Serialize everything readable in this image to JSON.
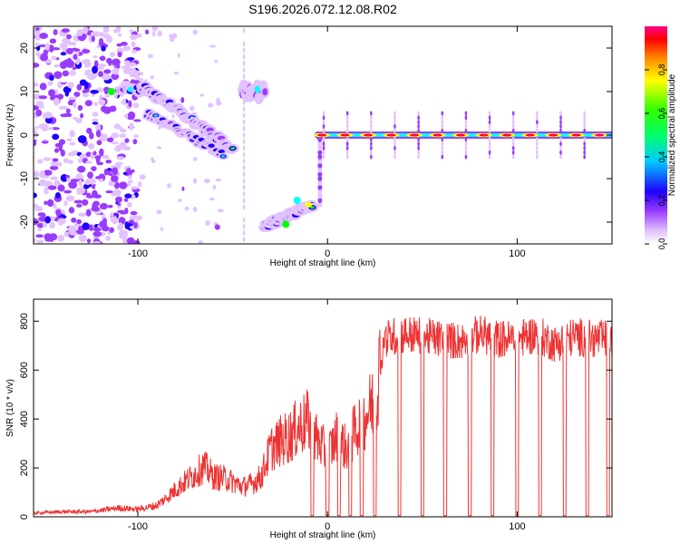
{
  "figure_title": "S196.2026.072.12.08.R02",
  "colors": {
    "snr_line": "#ee3333",
    "spectrogram_background": "#ffffff",
    "colormap": [
      "#ffffff",
      "#e2c2ff",
      "#9a3cff",
      "#1e00ff",
      "#00ffff",
      "#00ff00",
      "#ffff00",
      "#ff8000",
      "#ff0000",
      "#ff0080"
    ]
  },
  "chart_data": [
    {
      "type": "heatmap",
      "title": "",
      "xlabel": "Height of straight line (km)",
      "ylabel": "Frequency (Hz)",
      "xlim": [
        -155,
        150
      ],
      "ylim": [
        -25,
        25
      ],
      "x_ticks": [
        -100,
        0,
        100
      ],
      "x_tick_labels": [
        "-100",
        "0",
        "100"
      ],
      "y_ticks": [
        -20,
        -10,
        0,
        10,
        20
      ],
      "y_tick_labels": [
        "-20",
        "-10",
        "0",
        "10",
        "20"
      ],
      "grid": false,
      "colorbar": {
        "label": "Normalized spectral amplitude",
        "range": [
          0,
          1
        ],
        "ticks": [
          0.0,
          0.2,
          0.4,
          0.6,
          0.8
        ],
        "tick_labels": [
          "0.0",
          "0.2",
          "0.4",
          "0.6",
          "0.8"
        ]
      },
      "features": [
        {
          "name": "noise",
          "x_range": [
            -155,
            -100
          ],
          "freq_range": [
            -25,
            25
          ],
          "peak": 0.25
        },
        {
          "name": "band-10Hz",
          "x_range": [
            -110,
            -95
          ],
          "freq_center": 10.5,
          "peak": 0.55
        },
        {
          "name": "descending-track",
          "x_start": -97,
          "freq_start": 11,
          "x_end": -50,
          "freq_end": -3,
          "peak": 0.55
        },
        {
          "name": "lower-track",
          "x_start": -95,
          "freq_start": 5,
          "x_end": -55,
          "freq_end": -4.5,
          "peak": 0.5
        },
        {
          "name": "band-near-x-35",
          "x_range": [
            -45,
            -33
          ],
          "freq_center": 10,
          "peak": 0.45
        },
        {
          "name": "ascending-track",
          "x_start": -33,
          "freq_start": -21,
          "x_end": -8,
          "freq_end": -16,
          "peak": 0.65
        },
        {
          "name": "zero-line",
          "x_range": [
            -5,
            150
          ],
          "freq_center": 0,
          "peak": 1.0
        }
      ]
    },
    {
      "type": "line",
      "title": "",
      "xlabel": "Height of straight line (km)",
      "ylabel": "SNR (10 * v/v)",
      "xlim": [
        -155,
        150
      ],
      "ylim": [
        0,
        890
      ],
      "x_ticks": [
        -100,
        0,
        100
      ],
      "x_tick_labels": [
        "-100",
        "0",
        "100"
      ],
      "y_ticks": [
        0,
        200,
        400,
        600,
        800
      ],
      "y_tick_labels": [
        "0",
        "200",
        "400",
        "600",
        "800"
      ],
      "grid": false,
      "series": [
        {
          "x": [
            -155,
            -140,
            -125,
            -110,
            -100,
            -90,
            -85,
            -80,
            -75,
            -70,
            -65,
            -60,
            -55,
            -50,
            -45,
            -40,
            -35,
            -30,
            -25,
            -20,
            -15,
            -10,
            -5,
            0,
            5,
            10,
            15,
            20,
            25,
            30,
            40,
            50,
            60,
            70,
            80,
            90,
            100,
            110,
            120,
            130,
            140,
            150
          ],
          "y": [
            15,
            20,
            20,
            35,
            30,
            45,
            75,
            110,
            140,
            170,
            200,
            160,
            155,
            140,
            120,
            130,
            160,
            270,
            300,
            320,
            360,
            380,
            300,
            250,
            320,
            270,
            350,
            400,
            470,
            720,
            740,
            730,
            720,
            710,
            740,
            720,
            720,
            740,
            700,
            730,
            720,
            720
          ],
          "dropouts_x": [
            -8,
            0,
            6,
            12,
            18,
            25,
            38,
            50,
            62,
            75,
            87,
            100,
            112,
            125,
            137,
            148
          ],
          "dropout_value": 5
        }
      ]
    }
  ]
}
